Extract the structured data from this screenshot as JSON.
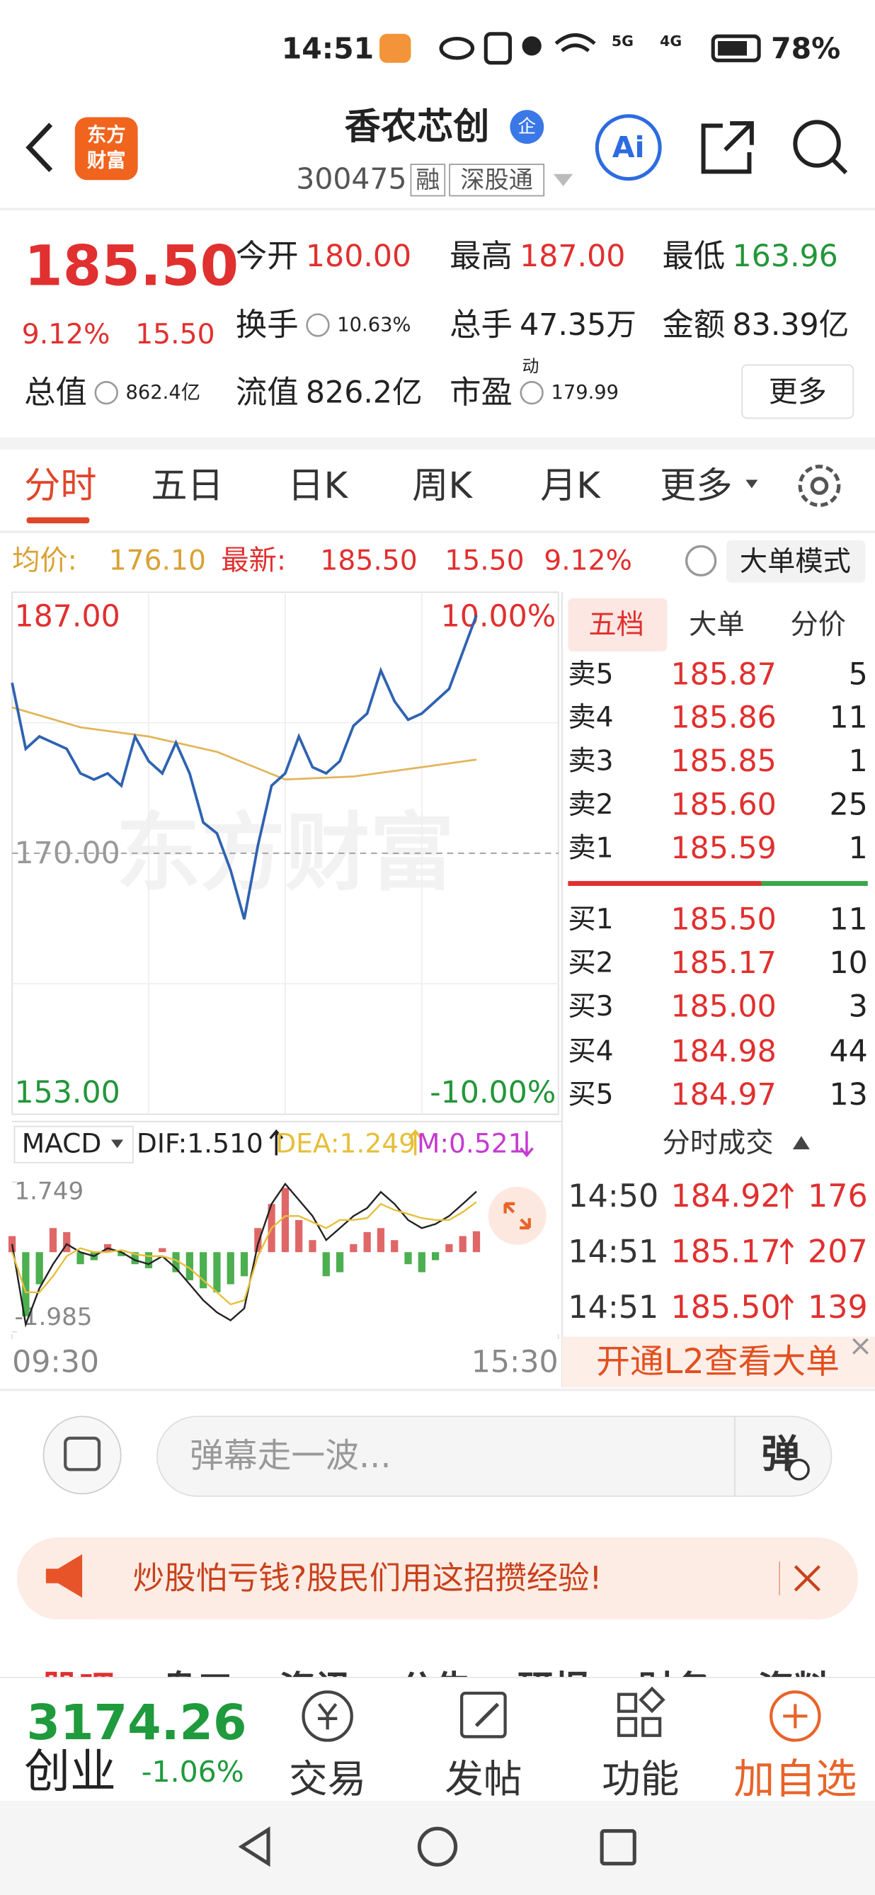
{
  "status_bar": {
    "time": "14:51",
    "signals": [
      "5G",
      "4G"
    ],
    "battery": "78%"
  },
  "header": {
    "logo": [
      "东方",
      "财富"
    ],
    "name": "香农芯创",
    "badge": "企",
    "code": "300475",
    "tags": [
      "融",
      "深股通"
    ],
    "ai": "Ai"
  },
  "quote": {
    "price": "185.50",
    "change_pct": "9.12%",
    "change": "15.50",
    "more": "更多",
    "fields": [
      {
        "label": "今开",
        "value": "180.00",
        "color": "#e0302f"
      },
      {
        "label": "最高",
        "value": "187.00",
        "color": "#e0302f"
      },
      {
        "label": "最低",
        "value": "163.96",
        "color": "#23963a"
      },
      {
        "label": "换手",
        "value": "10.63%"
      },
      {
        "label": "总手",
        "value": "47.35万"
      },
      {
        "label": "金额",
        "value": "83.39亿"
      },
      {
        "label": "总值",
        "value": "862.4亿"
      },
      {
        "label": "流值",
        "value": "826.2亿"
      },
      {
        "label": "市盈",
        "sup": "动",
        "value": "179.99"
      }
    ]
  },
  "tabs": [
    "分时",
    "五日",
    "日K",
    "周K",
    "月K",
    "更多"
  ],
  "info_bar": {
    "avg_label": "均价:",
    "avg": "176.10",
    "latest_label": "最新:",
    "latest": "185.50",
    "change": "15.50",
    "change_pct": "9.12%",
    "mode": "大单模式"
  },
  "chart_data": [
    {
      "type": "line",
      "watermark": "东方财富",
      "xlim": [
        0,
        240
      ],
      "xticks": [
        {
          "value": 0,
          "label": "09:30"
        },
        {
          "value": 240,
          "label": "15:30"
        }
      ],
      "ylim": [
        153,
        187
      ],
      "yticks": [
        {
          "value": 187,
          "label": "187.00"
        },
        {
          "value": 170,
          "label": "170.00"
        },
        {
          "value": 153,
          "label": "153.00"
        }
      ],
      "y2lim": [
        -10,
        10
      ],
      "y2ticks": [
        {
          "value": 10,
          "label": "10.00%"
        },
        {
          "value": -10,
          "label": "-10.00%"
        }
      ],
      "grid": true,
      "series": [
        {
          "color": "#2f62b1",
          "x": [
            0,
            6,
            12,
            18,
            24,
            30,
            36,
            42,
            48,
            54,
            60,
            66,
            72,
            78,
            84,
            90,
            96,
            102,
            108,
            114,
            120,
            126,
            132,
            138,
            144,
            150,
            156,
            162,
            168,
            174,
            180,
            186,
            192,
            198,
            204
          ],
          "values": [
            181.1,
            176.8,
            177.6,
            177.2,
            176.8,
            175.2,
            174.8,
            175.2,
            174.4,
            177.6,
            176.0,
            175.2,
            177.2,
            175.2,
            172.0,
            171.3,
            168.9,
            165.7,
            170.5,
            174.4,
            175.2,
            177.6,
            175.6,
            175.2,
            176.0,
            178.3,
            179.1,
            181.9,
            179.9,
            178.7,
            179.1,
            179.9,
            180.7,
            183.1,
            185.5
          ]
        },
        {
          "color": "#e3b45a",
          "x": [
            0,
            30,
            60,
            90,
            120,
            150,
            180,
            204
          ],
          "values": [
            179.5,
            178.2,
            177.6,
            176.6,
            174.8,
            175.0,
            175.6,
            176.1
          ]
        }
      ]
    },
    {
      "type": "macd",
      "label": "MACD",
      "xlim": [
        0,
        240
      ],
      "ylim": [
        -1.985,
        1.749
      ],
      "yticks": [
        {
          "value": 1.749,
          "label": "1.749"
        },
        {
          "value": -1.985,
          "label": "-1.985"
        }
      ],
      "x": [
        0,
        6,
        12,
        18,
        24,
        30,
        36,
        42,
        48,
        54,
        60,
        66,
        72,
        78,
        84,
        90,
        96,
        102,
        108,
        114,
        120,
        126,
        132,
        138,
        144,
        150,
        156,
        162,
        168,
        174,
        180,
        186,
        192,
        198,
        204
      ],
      "series": [
        {
          "legend": "DIF:1.510",
          "color": "#222222",
          "values": [
            0.2,
            -1.8,
            -0.9,
            -0.3,
            0.2,
            0.0,
            -0.1,
            0.1,
            0.0,
            -0.2,
            -0.3,
            -0.1,
            -0.4,
            -0.8,
            -1.2,
            -1.5,
            -1.7,
            -1.4,
            0.2,
            1.2,
            1.7,
            1.3,
            0.9,
            0.3,
            0.6,
            0.9,
            1.1,
            1.5,
            1.2,
            0.8,
            0.6,
            0.7,
            0.9,
            1.2,
            1.51
          ]
        },
        {
          "legend": "DEA:1.249",
          "color": "#e6bf3a",
          "values": [
            0.0,
            -1.0,
            -1.0,
            -0.6,
            -0.1,
            0.1,
            0.0,
            0.0,
            0.05,
            -0.05,
            -0.1,
            -0.1,
            -0.2,
            -0.4,
            -0.7,
            -1.0,
            -1.3,
            -1.2,
            -0.1,
            0.6,
            0.9,
            0.9,
            0.75,
            0.6,
            0.8,
            0.8,
            0.85,
            1.2,
            1.05,
            0.95,
            0.85,
            0.8,
            0.8,
            1.0,
            1.249
          ]
        },
        {
          "legend": "M:0.521",
          "color": "#c43bd0",
          "kind": "bar",
          "up_color": "#e06767",
          "down_color": "#4caf50",
          "values": [
            0.4,
            -1.6,
            -0.8,
            0.6,
            0.5,
            -0.3,
            -0.2,
            0.2,
            -0.1,
            -0.3,
            -0.4,
            0.1,
            -0.5,
            -0.7,
            -0.9,
            -1.0,
            -0.8,
            -0.6,
            0.6,
            1.2,
            1.6,
            0.8,
            0.3,
            -0.6,
            -0.5,
            0.2,
            0.5,
            0.6,
            0.3,
            -0.3,
            -0.5,
            -0.2,
            0.2,
            0.4,
            0.521
          ]
        }
      ]
    }
  ],
  "order_book": {
    "tabs": [
      "五档",
      "大单",
      "分价"
    ],
    "asks": [
      {
        "label": "卖5",
        "price": "185.87",
        "volume": 5
      },
      {
        "label": "卖4",
        "price": "185.86",
        "volume": 11
      },
      {
        "label": "卖3",
        "price": "185.85",
        "volume": 1
      },
      {
        "label": "卖2",
        "price": "185.60",
        "volume": 25
      },
      {
        "label": "卖1",
        "price": "185.59",
        "volume": 1
      }
    ],
    "bids": [
      {
        "label": "买1",
        "price": "185.50",
        "volume": 11
      },
      {
        "label": "买2",
        "price": "185.17",
        "volume": 10
      },
      {
        "label": "买3",
        "price": "185.00",
        "volume": 3
      },
      {
        "label": "买4",
        "price": "184.98",
        "volume": 44
      },
      {
        "label": "买5",
        "price": "184.97",
        "volume": 13
      }
    ]
  },
  "trades": {
    "title": "分时成交",
    "rows": [
      {
        "time": "14:50",
        "price": "184.92",
        "volume": 176
      },
      {
        "time": "14:51",
        "price": "185.17",
        "volume": 207
      },
      {
        "time": "14:51",
        "price": "185.50",
        "volume": 139
      }
    ]
  },
  "l2_banner": "开通L2查看大单",
  "comment": {
    "placeholder": "弹幕走一波...",
    "button": "弹"
  },
  "promo": "炒股怕亏钱?股民们用这招攒经验!",
  "section_tabs": [
    "股吧",
    "盘口",
    "资讯",
    "公告",
    "研报",
    "财务",
    "资料"
  ],
  "bottom_bar": {
    "index_value": "3174.26",
    "index_name": "创业",
    "index_change": "-1.06%",
    "actions": [
      "交易",
      "发帖",
      "功能",
      "加自选"
    ]
  }
}
